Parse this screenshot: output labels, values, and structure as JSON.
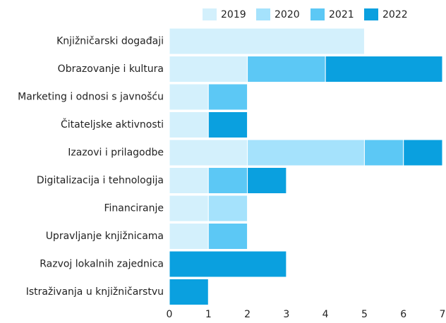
{
  "chart_data": {
    "type": "stacked-barh",
    "categories": [
      "Knjižničarski događaji",
      "Obrazovanje i kultura",
      "Marketing i odnosi s javnošću",
      "Čitateljske aktivnosti",
      "Izazovi i prilagodbe",
      "Digitalizacija i tehnologija",
      "Financiranje",
      "Upravljanje knjižnicama",
      "Razvoj lokalnih zajednica",
      "Istraživanja u knjižničarstvu"
    ],
    "series": [
      {
        "name": "2019",
        "color": "#d3f0fc",
        "values": [
          5,
          2,
          1,
          1,
          2,
          1,
          1,
          1,
          0,
          0
        ]
      },
      {
        "name": "2020",
        "color": "#a5e2fc",
        "values": [
          0,
          0,
          0,
          0,
          3,
          0,
          1,
          0,
          0,
          0
        ]
      },
      {
        "name": "2021",
        "color": "#5cc8f5",
        "values": [
          0,
          2,
          1,
          0,
          1,
          1,
          0,
          1,
          0,
          0
        ]
      },
      {
        "name": "2022",
        "color": "#0aa0df",
        "values": [
          0,
          3,
          0,
          1,
          1,
          1,
          0,
          0,
          3,
          1
        ]
      }
    ],
    "xlim": [
      0,
      7
    ],
    "xticks": [
      0,
      1,
      2,
      3,
      4,
      5,
      6,
      7
    ],
    "legend": "top"
  }
}
